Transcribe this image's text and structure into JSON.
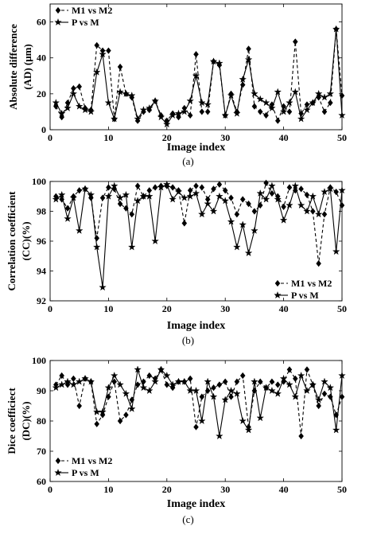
{
  "chart_data": [
    {
      "type": "line",
      "panel_label": "(a)",
      "xlabel": "Image index",
      "ylabel": "Absolute difference (AD) (μm)",
      "ylabel_lines": [
        "Absolute difference",
        "(AD) (μm)"
      ],
      "xlim": [
        0,
        50
      ],
      "ylim": [
        0,
        70
      ],
      "xticks": [
        0,
        10,
        20,
        30,
        40,
        50
      ],
      "yticks": [
        0,
        20,
        40,
        60
      ],
      "grid": false,
      "legend_position": "top-left",
      "x": [
        1,
        2,
        3,
        4,
        5,
        6,
        7,
        8,
        9,
        10,
        11,
        12,
        13,
        14,
        15,
        16,
        17,
        18,
        19,
        20,
        21,
        22,
        23,
        24,
        25,
        26,
        27,
        28,
        29,
        30,
        31,
        32,
        33,
        34,
        35,
        36,
        37,
        38,
        39,
        40,
        41,
        42,
        43,
        44,
        45,
        46,
        47,
        48,
        49,
        50
      ],
      "series": [
        {
          "name": "M1 vs M2",
          "marker": "diamond",
          "line": "dashed",
          "values": [
            13,
            7,
            15,
            23,
            24,
            12,
            11,
            47,
            44,
            44,
            6,
            35,
            20,
            18,
            5,
            10,
            11,
            16,
            8,
            5,
            9,
            7,
            12,
            8,
            42,
            10,
            10,
            38,
            36,
            8,
            20,
            10,
            25,
            45,
            13,
            10,
            8,
            14,
            5,
            13,
            10,
            49,
            9,
            14,
            15,
            18,
            10,
            15,
            56,
            19
          ]
        },
        {
          "name": "P vs M",
          "marker": "star",
          "line": "solid",
          "values": [
            15,
            9,
            12,
            20,
            13,
            11,
            10,
            32,
            42,
            15,
            6,
            21,
            20,
            19,
            6,
            11,
            12,
            16,
            7,
            3,
            8,
            9,
            10,
            16,
            30,
            15,
            14,
            38,
            37,
            8,
            19,
            9,
            28,
            39,
            20,
            17,
            15,
            12,
            21,
            10,
            15,
            21,
            6,
            11,
            15,
            20,
            18,
            20,
            56,
            8
          ]
        }
      ]
    },
    {
      "type": "line",
      "panel_label": "(b)",
      "xlabel": "Image index",
      "ylabel": "Correlation coefficient (CC)(%)",
      "ylabel_lines": [
        "Correlation coefficient",
        "(CC)(%)"
      ],
      "xlim": [
        0,
        50
      ],
      "ylim": [
        92,
        100
      ],
      "xticks": [
        0,
        10,
        20,
        30,
        40,
        50
      ],
      "yticks": [
        92,
        94,
        96,
        98,
        100
      ],
      "grid": false,
      "legend_position": "bottom-right",
      "x": [
        1,
        2,
        3,
        4,
        5,
        6,
        7,
        8,
        9,
        10,
        11,
        12,
        13,
        14,
        15,
        16,
        17,
        18,
        19,
        20,
        21,
        22,
        23,
        24,
        25,
        26,
        27,
        28,
        29,
        30,
        31,
        32,
        33,
        34,
        35,
        36,
        37,
        38,
        39,
        40,
        41,
        42,
        43,
        44,
        45,
        46,
        47,
        48,
        49,
        50
      ],
      "series": [
        {
          "name": "M1 vs M2",
          "marker": "diamond",
          "line": "dashed",
          "values": [
            99.0,
            98.8,
            98.2,
            99.0,
            99.4,
            99.5,
            98.9,
            96.2,
            98.9,
            99.6,
            99.5,
            98.5,
            98.2,
            97.8,
            99.7,
            99.0,
            99.4,
            99.6,
            99.7,
            99.7,
            99.6,
            99.4,
            97.2,
            99.4,
            99.7,
            99.6,
            98.8,
            99.5,
            99.8,
            99.4,
            98.9,
            97.8,
            98.8,
            98.5,
            98.0,
            98.4,
            99.9,
            99.2,
            99.0,
            98.3,
            99.6,
            99.4,
            99.5,
            99.1,
            98.0,
            94.5,
            97.8,
            99.6,
            99.3,
            98.4
          ]
        },
        {
          "name": "P vs M",
          "marker": "star",
          "line": "solid",
          "values": [
            98.8,
            99.1,
            97.5,
            98.9,
            96.7,
            99.5,
            99.1,
            95.6,
            92.9,
            99.0,
            99.7,
            98.9,
            99.1,
            95.6,
            98.7,
            99.0,
            99.0,
            96.0,
            99.6,
            99.8,
            98.8,
            99.3,
            98.9,
            99.0,
            99.2,
            97.8,
            98.5,
            98.0,
            99.0,
            98.7,
            97.3,
            95.6,
            97.1,
            95.2,
            96.7,
            99.2,
            98.8,
            99.7,
            98.8,
            97.4,
            98.4,
            99.7,
            98.4,
            98.0,
            99.0,
            97.8,
            99.3,
            99.5,
            95.3,
            99.4
          ]
        }
      ]
    },
    {
      "type": "line",
      "panel_label": "(c)",
      "xlabel": "Image index",
      "ylabel": "Dice coefficiect (DC)(%)",
      "ylabel_lines": [
        "Dice coefficiect",
        "(DC)(%)"
      ],
      "xlim": [
        0,
        50
      ],
      "ylim": [
        60,
        100
      ],
      "xticks": [
        0,
        10,
        20,
        30,
        40,
        50
      ],
      "yticks": [
        60,
        70,
        80,
        90,
        100
      ],
      "grid": false,
      "legend_position": "bottom-left",
      "x": [
        1,
        2,
        3,
        4,
        5,
        6,
        7,
        8,
        9,
        10,
        11,
        12,
        13,
        14,
        15,
        16,
        17,
        18,
        19,
        20,
        21,
        22,
        23,
        24,
        25,
        26,
        27,
        28,
        29,
        30,
        31,
        32,
        33,
        34,
        35,
        36,
        37,
        38,
        39,
        40,
        41,
        42,
        43,
        44,
        45,
        46,
        47,
        48,
        49,
        50
      ],
      "series": [
        {
          "name": "M1 vs M2",
          "marker": "diamond",
          "line": "dashed",
          "values": [
            92,
            95,
            92,
            94,
            85,
            94,
            93,
            79,
            82,
            88,
            93,
            80,
            82,
            87,
            92,
            93,
            95,
            94,
            97,
            92,
            91,
            93,
            93,
            94,
            78,
            88,
            90,
            91,
            92,
            93,
            88,
            93,
            95,
            78,
            90,
            93,
            91,
            93,
            92,
            93,
            97,
            94,
            75,
            97,
            92,
            85,
            89,
            88,
            82,
            88
          ]
        },
        {
          "name": "P vs M",
          "marker": "star",
          "line": "solid",
          "values": [
            91,
            92,
            93,
            92,
            93,
            94,
            93,
            83,
            83,
            91,
            95,
            92,
            89,
            84,
            97,
            91,
            90,
            93,
            97,
            95,
            92,
            93,
            93,
            90,
            90,
            80,
            93,
            88,
            75,
            87,
            90,
            89,
            80,
            77,
            93,
            81,
            91,
            90,
            89,
            94,
            92,
            88,
            95,
            90,
            92,
            87,
            93,
            91,
            77,
            95
          ]
        }
      ]
    }
  ]
}
